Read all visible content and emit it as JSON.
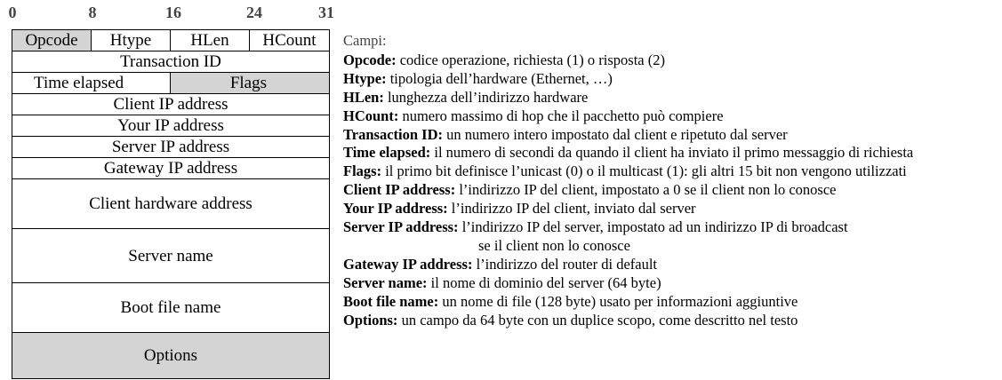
{
  "ruler": {
    "ticks": [
      "0",
      "8",
      "16",
      "24",
      "31"
    ]
  },
  "packet": {
    "rows": [
      {
        "cells": [
          "Opcode",
          "Htype",
          "HLen",
          "HCount"
        ]
      },
      {
        "cells": [
          "Transaction ID"
        ]
      },
      {
        "cells": [
          "Time elapsed",
          "Flags"
        ]
      },
      {
        "cells": [
          "Client IP address"
        ]
      },
      {
        "cells": [
          "Your IP address"
        ]
      },
      {
        "cells": [
          "Server IP address"
        ]
      },
      {
        "cells": [
          "Gateway IP address"
        ]
      },
      {
        "cells": [
          "Client hardware address"
        ]
      },
      {
        "cells": [
          "Server name"
        ]
      },
      {
        "cells": [
          "Boot file name"
        ]
      },
      {
        "cells": [
          "Options"
        ]
      }
    ],
    "shade_color": "#d4d4d4"
  },
  "descriptions": {
    "header": "Campi:",
    "items": [
      {
        "key": "Opcode:",
        "text": " codice operazione, richiesta (1) o risposta (2)"
      },
      {
        "key": "Htype:",
        "text": " tipologia dell’hardware (Ethernet, …)"
      },
      {
        "key": "HLen:",
        "text": " lunghezza dell’indirizzo hardware"
      },
      {
        "key": "HCount:",
        "text": " numero massimo di hop che il pacchetto può compiere"
      },
      {
        "key": "Transaction ID:",
        "text": " un numero intero impostato dal client e ripetuto dal server"
      },
      {
        "key": "Time elapsed:",
        "text": " il numero di secondi da quando il client ha inviato il primo messaggio di richiesta"
      },
      {
        "key": "Flags:",
        "text": " il primo bit definisce l’unicast (0) o il multicast (1): gli altri 15 bit non vengono utilizzati"
      },
      {
        "key": "Client IP address:",
        "text": " l’indirizzo IP del client, impostato a 0 se il client non lo conosce"
      },
      {
        "key": "Your IP address:",
        "text": " l’indirizzo IP del client, inviato dal server"
      },
      {
        "key": "Server IP address:",
        "text": " l’indirizzo IP del server, impostato ad un indirizzo IP di broadcast",
        "continuation": "se il client non lo conosce"
      },
      {
        "key": "Gateway IP address:",
        "text": " l’indirizzo del router di default"
      },
      {
        "key": "Server name:",
        "text": " il nome di dominio del server (64 byte)"
      },
      {
        "key": "Boot file name:",
        "text": " un nome di file (128 byte) usato per informazioni aggiuntive"
      },
      {
        "key": "Options:",
        "text": " un campo da 64 byte con un duplice scopo, come descritto nel testo"
      }
    ]
  }
}
